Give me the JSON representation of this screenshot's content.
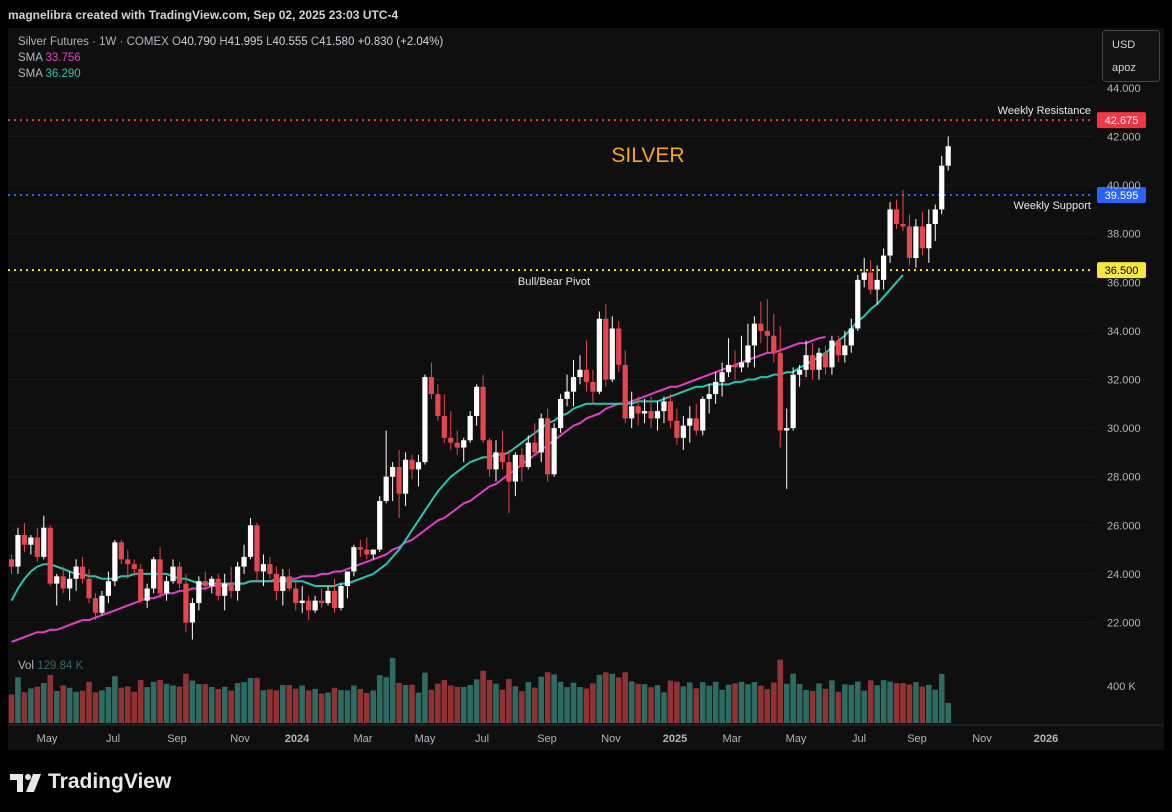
{
  "header": {
    "attribution": "magnelibra created with TradingView.com, Sep 02, 2025 23:03 UTC-4"
  },
  "legend": {
    "symbol": "Silver Futures · 1W · COMEX",
    "open_label": "O",
    "open": "40.790",
    "high_label": "H",
    "high": "41.995",
    "low_label": "L",
    "low": "40.555",
    "close_label": "C",
    "close": "41.580",
    "change": "+0.830 (+2.04%)",
    "sma1_label": "SMA",
    "sma1_value": "33.756",
    "sma2_label": "SMA",
    "sma2_value": "36.290"
  },
  "scale_box": {
    "currency": "USD",
    "mode": "apoz"
  },
  "volume": {
    "label": "Vol",
    "value": "129.84 K",
    "axis_label": "400 K"
  },
  "footer": {
    "brand": "TradingView"
  },
  "colors": {
    "up": "#ffffff",
    "down": "#e4484f",
    "vol_up": "#2e6b62",
    "vol_down": "#8f3334",
    "sma_slow": "#e040c8",
    "sma_fast": "#26c6b0",
    "resistance": "#f23645",
    "support": "#2962ff",
    "pivot": "#f5e642",
    "annotation": "#f5a623"
  },
  "chart_data": {
    "type": "candlestick",
    "title": "SILVER",
    "timeframe": "1W",
    "y_axis": {
      "range": [
        21.0,
        45.5
      ],
      "ticks": [
        "22.000",
        "24.000",
        "26.000",
        "28.000",
        "30.000",
        "32.000",
        "34.000",
        "36.000",
        "38.000",
        "40.000",
        "42.000",
        "44.000"
      ]
    },
    "x_axis": {
      "ticks": [
        "May",
        "Jul",
        "Sep",
        "Nov",
        "2024",
        "Mar",
        "May",
        "Jul",
        "Sep",
        "Nov",
        "2025",
        "Mar",
        "May",
        "Jul",
        "Sep",
        "Nov",
        "2026"
      ]
    },
    "levels": [
      {
        "name": "Weekly Resistance",
        "value": 42.675,
        "label": "42.675",
        "color": "#f23645"
      },
      {
        "name": "Weekly Support",
        "value": 39.595,
        "label": "39.595",
        "color": "#2962ff"
      },
      {
        "name": "Bull/Bear Pivot",
        "value": 36.5,
        "label": "36.500",
        "color": "#f5e642"
      }
    ],
    "volume_axis": {
      "max_k": 480
    },
    "candles_approx": [
      [
        24.6,
        24.8,
        24.0,
        24.3
      ],
      [
        24.3,
        25.9,
        24.0,
        25.6
      ],
      [
        25.6,
        26.1,
        24.9,
        25.2
      ],
      [
        25.2,
        25.6,
        24.8,
        25.5
      ],
      [
        25.5,
        25.9,
        24.5,
        24.7
      ],
      [
        24.7,
        26.4,
        24.6,
        25.9
      ],
      [
        25.9,
        26.0,
        23.5,
        23.6
      ],
      [
        23.6,
        24.0,
        22.7,
        23.9
      ],
      [
        23.9,
        24.3,
        23.2,
        23.4
      ],
      [
        23.4,
        24.1,
        22.9,
        23.8
      ],
      [
        23.8,
        24.6,
        23.3,
        24.3
      ],
      [
        24.3,
        24.7,
        23.6,
        23.8
      ],
      [
        23.8,
        24.2,
        22.8,
        23.0
      ],
      [
        23.0,
        23.2,
        22.1,
        22.4
      ],
      [
        22.4,
        23.3,
        22.3,
        23.1
      ],
      [
        23.1,
        24.1,
        22.8,
        23.7
      ],
      [
        23.7,
        25.4,
        23.5,
        25.3
      ],
      [
        25.3,
        25.4,
        24.4,
        24.6
      ],
      [
        24.6,
        25.0,
        23.8,
        24.4
      ],
      [
        24.4,
        24.6,
        23.9,
        24.2
      ],
      [
        24.2,
        24.4,
        22.8,
        22.9
      ],
      [
        22.9,
        23.6,
        22.6,
        23.4
      ],
      [
        23.4,
        24.7,
        23.2,
        24.6
      ],
      [
        24.6,
        25.1,
        23.0,
        23.2
      ],
      [
        23.2,
        23.9,
        22.9,
        23.7
      ],
      [
        23.7,
        24.6,
        23.6,
        24.3
      ],
      [
        24.3,
        24.5,
        23.4,
        23.6
      ],
      [
        23.6,
        24.0,
        21.6,
        22.0
      ],
      [
        22.0,
        23.0,
        21.3,
        22.8
      ],
      [
        22.8,
        23.9,
        22.5,
        23.7
      ],
      [
        23.7,
        24.1,
        23.3,
        23.5
      ],
      [
        23.5,
        23.9,
        23.2,
        23.8
      ],
      [
        23.8,
        24.0,
        22.9,
        23.1
      ],
      [
        23.1,
        24.0,
        22.5,
        23.6
      ],
      [
        23.6,
        24.3,
        23.0,
        23.3
      ],
      [
        23.3,
        24.5,
        22.9,
        24.3
      ],
      [
        24.3,
        25.2,
        24.0,
        24.7
      ],
      [
        24.7,
        26.3,
        24.6,
        26.0
      ],
      [
        26.0,
        26.1,
        23.7,
        24.1
      ],
      [
        24.1,
        24.8,
        23.5,
        24.4
      ],
      [
        24.4,
        24.7,
        23.8,
        24.0
      ],
      [
        24.0,
        24.3,
        22.9,
        23.3
      ],
      [
        23.3,
        24.2,
        22.7,
        23.9
      ],
      [
        23.9,
        24.2,
        23.3,
        23.4
      ],
      [
        23.4,
        23.7,
        22.5,
        22.8
      ],
      [
        22.8,
        23.5,
        22.4,
        22.9
      ],
      [
        22.9,
        23.1,
        22.1,
        22.5
      ],
      [
        22.5,
        23.1,
        22.4,
        22.9
      ],
      [
        22.9,
        23.4,
        22.6,
        22.8
      ],
      [
        22.8,
        23.5,
        22.7,
        23.3
      ],
      [
        23.3,
        23.8,
        22.4,
        22.6
      ],
      [
        22.6,
        23.6,
        22.5,
        23.5
      ],
      [
        23.5,
        24.1,
        23.0,
        24.1
      ],
      [
        24.1,
        25.2,
        23.9,
        25.1
      ],
      [
        25.1,
        25.4,
        24.7,
        25.0
      ],
      [
        25.0,
        25.5,
        24.6,
        24.8
      ],
      [
        24.8,
        25.0,
        24.6,
        25.0
      ],
      [
        25.0,
        27.2,
        24.9,
        27.0
      ],
      [
        27.0,
        29.9,
        26.9,
        28.0
      ],
      [
        28.0,
        28.6,
        27.0,
        28.4
      ],
      [
        28.4,
        29.1,
        26.3,
        27.3
      ],
      [
        27.3,
        29.0,
        26.8,
        28.7
      ],
      [
        28.7,
        28.9,
        27.9,
        28.3
      ],
      [
        28.3,
        28.9,
        27.6,
        28.6
      ],
      [
        28.6,
        32.2,
        28.5,
        32.1
      ],
      [
        32.1,
        32.7,
        31.2,
        31.4
      ],
      [
        31.4,
        31.8,
        30.3,
        30.5
      ],
      [
        30.5,
        31.4,
        29.4,
        29.6
      ],
      [
        29.6,
        30.7,
        29.1,
        29.4
      ],
      [
        29.4,
        29.9,
        28.9,
        29.2
      ],
      [
        29.2,
        29.6,
        28.6,
        29.5
      ],
      [
        29.5,
        30.7,
        29.4,
        30.5
      ],
      [
        30.5,
        31.8,
        30.1,
        31.7
      ],
      [
        31.7,
        32.2,
        29.4,
        29.5
      ],
      [
        29.5,
        29.6,
        28.0,
        28.3
      ],
      [
        28.3,
        29.5,
        27.8,
        29.0
      ],
      [
        29.0,
        29.9,
        28.3,
        28.6
      ],
      [
        28.6,
        29.1,
        26.5,
        27.8
      ],
      [
        27.8,
        29.0,
        27.2,
        28.9
      ],
      [
        28.9,
        29.2,
        27.8,
        28.4
      ],
      [
        28.4,
        29.7,
        28.3,
        29.4
      ],
      [
        29.4,
        30.2,
        28.9,
        29.0
      ],
      [
        29.0,
        30.6,
        28.6,
        30.4
      ],
      [
        30.4,
        30.8,
        27.8,
        28.1
      ],
      [
        28.1,
        30.2,
        28.0,
        30.0
      ],
      [
        30.0,
        31.4,
        29.8,
        31.2
      ],
      [
        31.2,
        32.2,
        30.9,
        31.5
      ],
      [
        31.5,
        32.8,
        30.9,
        32.1
      ],
      [
        32.1,
        33.0,
        31.8,
        32.4
      ],
      [
        32.4,
        33.6,
        31.5,
        31.9
      ],
      [
        31.9,
        32.4,
        31.0,
        31.5
      ],
      [
        31.5,
        34.8,
        31.4,
        34.5
      ],
      [
        34.5,
        35.1,
        31.7,
        32.0
      ],
      [
        32.0,
        34.6,
        31.9,
        34.1
      ],
      [
        34.1,
        34.4,
        32.3,
        32.6
      ],
      [
        32.6,
        33.2,
        30.2,
        30.4
      ],
      [
        30.4,
        31.5,
        30.0,
        30.9
      ],
      [
        30.9,
        31.3,
        30.1,
        30.6
      ],
      [
        30.6,
        31.2,
        30.2,
        30.7
      ],
      [
        30.7,
        31.3,
        30.0,
        30.4
      ],
      [
        30.4,
        31.1,
        29.9,
        30.7
      ],
      [
        30.7,
        31.3,
        30.2,
        31.1
      ],
      [
        31.1,
        31.4,
        30.0,
        30.3
      ],
      [
        30.3,
        30.8,
        29.3,
        29.6
      ],
      [
        29.6,
        30.5,
        29.1,
        30.1
      ],
      [
        30.1,
        30.9,
        29.4,
        30.4
      ],
      [
        30.4,
        31.0,
        29.7,
        29.9
      ],
      [
        29.9,
        31.3,
        29.7,
        31.2
      ],
      [
        31.2,
        31.8,
        30.6,
        31.4
      ],
      [
        31.4,
        32.3,
        31.0,
        31.9
      ],
      [
        31.9,
        32.7,
        31.3,
        32.3
      ],
      [
        32.3,
        33.7,
        32.1,
        32.6
      ],
      [
        32.6,
        33.2,
        32.0,
        32.5
      ],
      [
        32.5,
        33.8,
        32.3,
        32.7
      ],
      [
        32.7,
        34.3,
        32.5,
        33.4
      ],
      [
        33.4,
        34.6,
        32.5,
        34.3
      ],
      [
        34.3,
        35.2,
        33.5,
        34.0
      ],
      [
        34.0,
        35.3,
        33.1,
        33.8
      ],
      [
        33.8,
        34.7,
        32.7,
        33.1
      ],
      [
        33.1,
        34.2,
        29.2,
        29.9
      ],
      [
        29.9,
        30.8,
        27.5,
        30.0
      ],
      [
        30.0,
        32.5,
        29.9,
        32.2
      ],
      [
        32.2,
        32.6,
        31.7,
        32.4
      ],
      [
        32.4,
        33.6,
        32.1,
        33.0
      ],
      [
        33.0,
        33.5,
        32.0,
        32.4
      ],
      [
        32.4,
        33.3,
        32.0,
        33.1
      ],
      [
        33.1,
        33.4,
        32.2,
        32.5
      ],
      [
        32.5,
        33.8,
        32.2,
        33.6
      ],
      [
        33.6,
        33.8,
        32.7,
        33.0
      ],
      [
        33.0,
        34.0,
        32.7,
        33.4
      ],
      [
        33.4,
        34.5,
        33.1,
        34.1
      ],
      [
        34.1,
        36.3,
        34.0,
        36.1
      ],
      [
        36.1,
        37.0,
        35.8,
        36.4
      ],
      [
        36.4,
        36.9,
        35.5,
        35.7
      ],
      [
        35.7,
        36.7,
        35.1,
        36.1
      ],
      [
        36.1,
        37.4,
        35.7,
        37.1
      ],
      [
        37.1,
        39.3,
        36.8,
        39.0
      ],
      [
        39.0,
        39.4,
        38.2,
        38.4
      ],
      [
        38.4,
        39.8,
        38.1,
        38.3
      ],
      [
        38.3,
        38.8,
        36.7,
        37.0
      ],
      [
        37.0,
        38.6,
        36.6,
        38.3
      ],
      [
        38.3,
        38.9,
        37.1,
        37.4
      ],
      [
        37.4,
        39.0,
        36.8,
        38.4
      ],
      [
        38.4,
        39.2,
        37.7,
        39.0
      ],
      [
        39.0,
        41.2,
        38.8,
        40.8
      ],
      [
        40.8,
        42.0,
        40.6,
        41.6
      ]
    ],
    "sma_fast_approx": [
      22.9,
      23.4,
      23.8,
      24.1,
      24.3,
      24.4,
      24.4,
      24.3,
      24.2,
      24.1,
      24.0,
      24.0,
      23.9,
      23.9,
      23.8,
      23.8,
      23.8,
      23.9,
      23.9,
      24.0,
      24.0,
      24.0,
      24.0,
      24.0,
      24.0,
      23.9,
      23.8,
      23.8,
      23.7,
      23.6,
      23.6,
      23.6,
      23.6,
      23.6,
      23.6,
      23.6,
      23.6,
      23.7,
      23.7,
      23.7,
      23.7,
      23.7,
      23.7,
      23.7,
      23.7,
      23.7,
      23.6,
      23.5,
      23.5,
      23.5,
      23.5,
      23.6,
      23.6,
      23.7,
      23.8,
      23.9,
      24.0,
      24.2,
      24.4,
      24.7,
      25.0,
      25.4,
      25.8,
      26.2,
      26.6,
      27.0,
      27.4,
      27.7,
      28.0,
      28.2,
      28.4,
      28.6,
      28.7,
      28.8,
      28.8,
      28.9,
      28.9,
      29.0,
      29.2,
      29.4,
      29.6,
      29.8,
      30.0,
      30.2,
      30.3,
      30.5,
      30.6,
      30.8,
      30.9,
      31.0,
      31.0,
      31.0,
      31.0,
      31.0,
      31.0,
      31.0,
      31.0,
      31.1,
      31.1,
      31.1,
      31.1,
      31.2,
      31.3,
      31.4,
      31.5,
      31.6,
      31.7,
      31.7,
      31.8,
      31.8,
      31.8,
      31.8,
      31.9,
      31.9,
      32.0,
      32.0,
      32.1,
      32.1,
      32.2,
      32.2,
      32.3,
      32.3,
      32.5,
      32.6,
      32.8,
      32.9,
      33.1,
      33.3,
      33.6,
      33.8,
      34.1,
      34.4,
      34.6,
      34.9,
      35.1,
      35.4,
      35.7,
      36.0,
      36.3
    ],
    "sma_slow_approx": [
      21.2,
      21.3,
      21.4,
      21.5,
      21.6,
      21.6,
      21.7,
      21.7,
      21.8,
      21.9,
      22.0,
      22.1,
      22.1,
      22.2,
      22.3,
      22.4,
      22.5,
      22.6,
      22.7,
      22.8,
      22.9,
      23.0,
      23.0,
      23.1,
      23.2,
      23.2,
      23.3,
      23.3,
      23.4,
      23.4,
      23.4,
      23.5,
      23.5,
      23.5,
      23.6,
      23.6,
      23.6,
      23.7,
      23.7,
      23.7,
      23.7,
      23.8,
      23.8,
      23.8,
      23.8,
      23.9,
      23.9,
      23.9,
      24.0,
      24.0,
      24.1,
      24.1,
      24.2,
      24.3,
      24.4,
      24.5,
      24.6,
      24.7,
      24.8,
      25.0,
      25.1,
      25.3,
      25.4,
      25.6,
      25.8,
      26.0,
      26.2,
      26.3,
      26.5,
      26.7,
      26.9,
      27.0,
      27.2,
      27.4,
      27.6,
      27.7,
      27.9,
      28.1,
      28.3,
      28.5,
      28.7,
      28.9,
      29.1,
      29.3,
      29.5,
      29.7,
      29.9,
      30.1,
      30.2,
      30.4,
      30.5,
      30.6,
      30.8,
      30.9,
      31.0,
      31.0,
      31.1,
      31.2,
      31.3,
      31.4,
      31.5,
      31.6,
      31.7,
      31.7,
      31.8,
      31.9,
      32.0,
      32.1,
      32.2,
      32.3,
      32.4,
      32.5,
      32.6,
      32.7,
      32.8,
      32.9,
      33.0,
      33.1,
      33.1,
      33.2,
      33.3,
      33.4,
      33.5,
      33.5,
      33.6,
      33.7,
      33.75
    ]
  }
}
